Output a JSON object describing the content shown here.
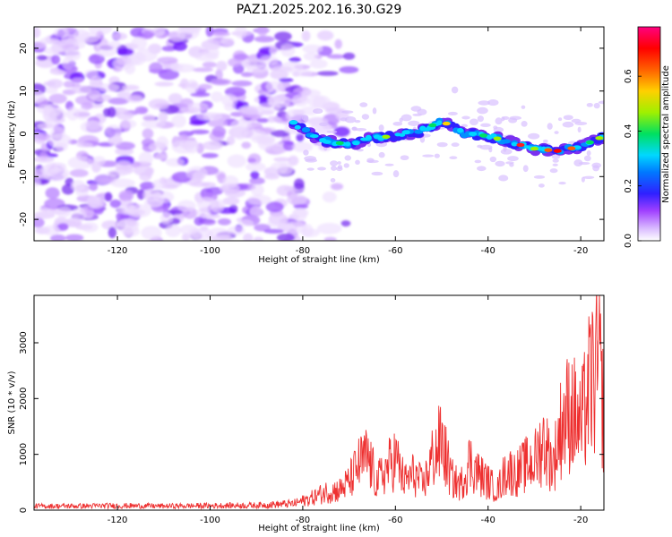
{
  "title": "PAZ1.2025.202.16.30.G29",
  "chart_data": [
    {
      "type": "heatmap",
      "xlabel": "Height of straight line (km)",
      "ylabel": "Frequency (Hz)",
      "xlim": [
        -138,
        -15
      ],
      "ylim": [
        -25,
        25
      ],
      "xticks": [
        -120,
        -100,
        -80,
        -60,
        -40,
        -20
      ],
      "yticks": [
        -20,
        -10,
        0,
        10,
        20
      ],
      "grid": false,
      "noise_region_x": [
        -138,
        -80
      ],
      "signal_ridge": {
        "x": [
          -82,
          -76,
          -70,
          -65,
          -60,
          -55,
          -50,
          -45,
          -40,
          -35,
          -30,
          -25,
          -20,
          -15
        ],
        "frequency": [
          2.5,
          -1.5,
          -2.5,
          -1.0,
          -0.5,
          0.5,
          3.0,
          0.0,
          -0.5,
          -2.0,
          -3.5,
          -4.0,
          -3.0,
          -0.5
        ]
      },
      "colorbar": {
        "label": "Normalized spectral amplitude",
        "range": [
          0.0,
          0.78
        ],
        "ticks": [
          0.0,
          0.2,
          0.4,
          0.6
        ],
        "colors": [
          "#ffffff",
          "#a040ff",
          "#3020ff",
          "#00c8ff",
          "#00e060",
          "#e0ff00",
          "#ff7000",
          "#ff0000",
          "#ff0080"
        ]
      }
    },
    {
      "type": "line",
      "xlabel": "Height of straight line (km)",
      "ylabel": "SNR (10 * v/v)",
      "xlim": [
        -138,
        -15
      ],
      "ylim": [
        0,
        3850
      ],
      "xticks": [
        -120,
        -100,
        -80,
        -60,
        -40,
        -20
      ],
      "yticks": [
        0,
        1000,
        2000,
        3000
      ],
      "grid": false,
      "line_color": "#ee3030",
      "series": [
        {
          "x": [
            -138,
            -130,
            -120,
            -110,
            -100,
            -90,
            -82,
            -78,
            -75,
            -72,
            -70,
            -68,
            -66,
            -64,
            -62,
            -60,
            -58,
            -56,
            -54,
            -52,
            -50,
            -48,
            -46,
            -44,
            -42,
            -40,
            -38,
            -36,
            -34,
            -32,
            -30,
            -28,
            -26,
            -24,
            -22,
            -20,
            -18,
            -16,
            -15
          ],
          "values": [
            100,
            100,
            110,
            100,
            110,
            120,
            160,
            300,
            450,
            500,
            700,
            1100,
            1300,
            700,
            1000,
            1300,
            700,
            900,
            600,
            1300,
            1700,
            800,
            600,
            1200,
            900,
            700,
            500,
            1000,
            900,
            1100,
            1200,
            1700,
            1100,
            2200,
            2500,
            2000,
            3100,
            3500,
            2300
          ]
        }
      ]
    }
  ]
}
